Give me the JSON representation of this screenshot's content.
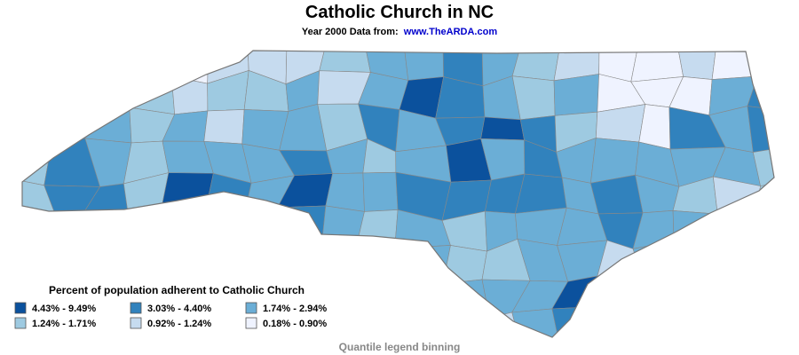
{
  "title": "Catholic Church in NC",
  "subtitle_prefix": "Year 2000 Data from:",
  "subtitle_link": "www.TheARDA.com",
  "legend": {
    "title": "Percent of population adherent to Catholic Church",
    "items": [
      {
        "label": "4.43% - 9.49%",
        "color": "#0b519d"
      },
      {
        "label": "3.03% - 4.40%",
        "color": "#3182bd"
      },
      {
        "label": "1.74% - 2.94%",
        "color": "#6baed6"
      },
      {
        "label": "1.24% - 1.71%",
        "color": "#9ecae1"
      },
      {
        "label": "0.92% - 1.24%",
        "color": "#c6dbef"
      },
      {
        "label": "0.18% - 0.90%",
        "color": "#eff3ff"
      }
    ]
  },
  "footnote": "Quantile legend binning"
}
